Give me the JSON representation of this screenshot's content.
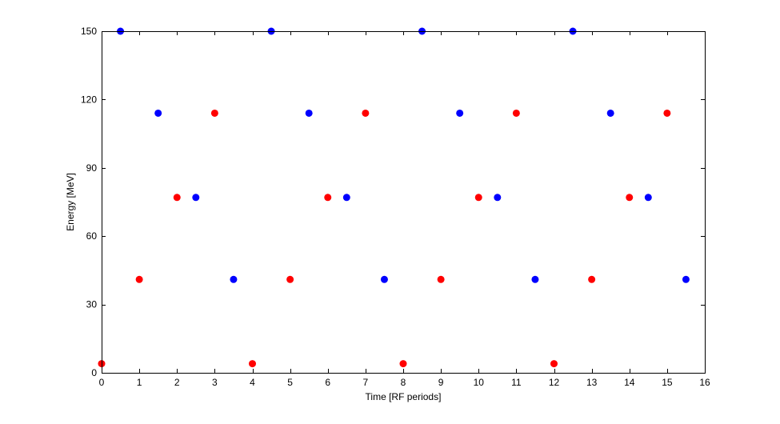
{
  "chart_data": {
    "type": "scatter",
    "title": "",
    "xlabel": "Time [RF periods]",
    "ylabel": "Energy [MeV]",
    "xlim": [
      0,
      16
    ],
    "ylim": [
      0,
      150
    ],
    "xticks": [
      0,
      1,
      2,
      3,
      4,
      5,
      6,
      7,
      8,
      9,
      10,
      11,
      12,
      13,
      14,
      15,
      16
    ],
    "yticks": [
      0,
      30,
      60,
      90,
      120,
      150
    ],
    "grid": false,
    "box": true,
    "series": [
      {
        "color": "#ff0000",
        "x": [
          0,
          1,
          2,
          3,
          4,
          5,
          6,
          7,
          8,
          9,
          10,
          11,
          12,
          13,
          14,
          15
        ],
        "y": [
          4,
          41,
          77,
          114,
          4,
          41,
          77,
          114,
          4,
          41,
          77,
          114,
          4,
          41,
          77,
          114
        ]
      },
      {
        "color": "#0000ff",
        "x": [
          0.5,
          1.5,
          2.5,
          3.5,
          4.5,
          5.5,
          6.5,
          7.5,
          8.5,
          9.5,
          10.5,
          11.5,
          12.5,
          13.5,
          14.5,
          15.5
        ],
        "y": [
          150,
          114,
          77,
          41,
          150,
          114,
          77,
          41,
          150,
          114,
          77,
          41,
          150,
          114,
          77,
          41
        ]
      }
    ]
  }
}
